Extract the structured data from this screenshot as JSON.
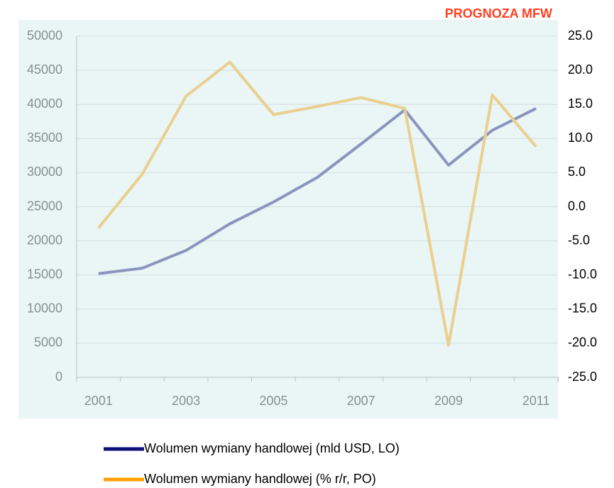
{
  "chart_data": {
    "type": "line",
    "categories": [
      "2001",
      null,
      "2003",
      null,
      "2005",
      null,
      "2007",
      null,
      "2009",
      null,
      "2011"
    ],
    "series": [
      {
        "name": "Wolumen wymiany handlowej (mld USD, LO)",
        "color": "#0f0f78",
        "values": [
          15200,
          16000,
          18600,
          22500,
          25700,
          29300,
          34200,
          39200,
          31100,
          36200,
          39400
        ]
      },
      {
        "name": "Wolumen wymiany handlowej (% r/r, PO)",
        "color": "#ffa000",
        "axis": "y2",
        "values": [
          -3.1,
          4.8,
          16.2,
          21.2,
          13.5,
          14.7,
          16.0,
          14.4,
          -20.3,
          16.4,
          8.8
        ]
      }
    ],
    "ylim": [
      0,
      50000
    ],
    "yticks": [
      0,
      5000,
      10000,
      15000,
      20000,
      25000,
      30000,
      35000,
      40000,
      45000,
      50000
    ],
    "y2lim": [
      -25,
      25
    ],
    "y2ticks": [
      {
        "value": -25,
        "label": "-25.0"
      },
      {
        "value": -20,
        "label": "-20.0"
      },
      {
        "value": -15,
        "label": "-15.0"
      },
      {
        "value": -10,
        "label": "-10.0"
      },
      {
        "value": -5,
        "label": "-5.0"
      },
      {
        "value": 0,
        "label": "0.0"
      },
      {
        "value": 5,
        "label": "5.0"
      },
      {
        "value": 10,
        "label": "10.0"
      },
      {
        "value": 15,
        "label": "15.0"
      },
      {
        "value": 20,
        "label": "20.0"
      },
      {
        "value": 25,
        "label": "25.0"
      }
    ],
    "grid": true,
    "forecast": {
      "label": "PROGNOZA MFW",
      "from": "2010",
      "color": "#dceeee",
      "label_color": "#ff4020"
    }
  }
}
